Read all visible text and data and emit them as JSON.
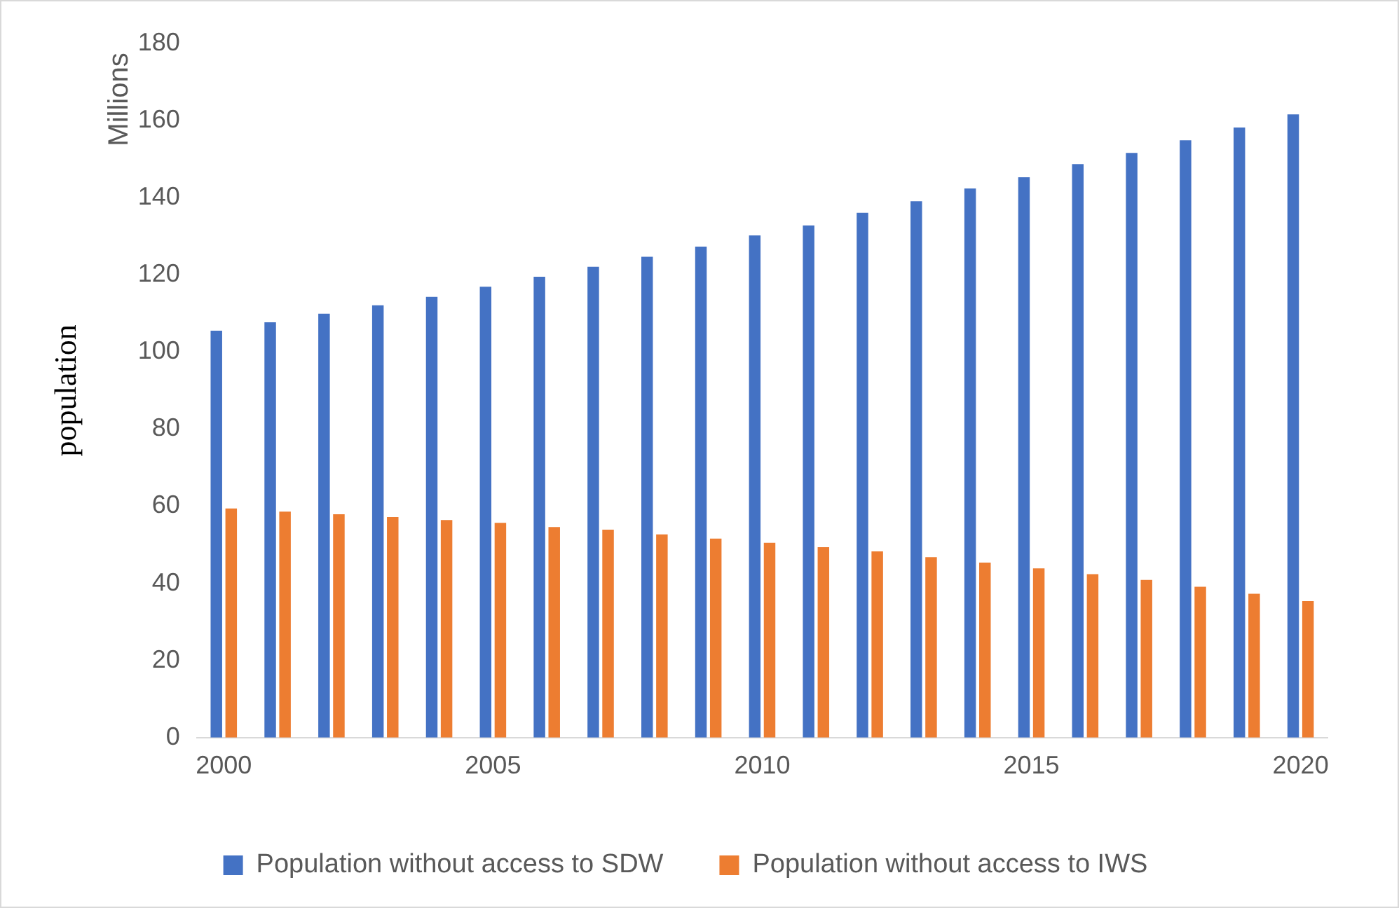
{
  "chart_data": {
    "type": "bar",
    "ylabel": "population",
    "annotations": [
      "Millions"
    ],
    "categories": [
      "2000",
      null,
      null,
      null,
      null,
      "2005",
      null,
      null,
      null,
      null,
      "2010",
      null,
      null,
      null,
      null,
      "2015",
      null,
      null,
      null,
      null,
      "2020"
    ],
    "series": [
      {
        "name": "Population without access to SDW",
        "color": "#4472c4",
        "values": [
          105.5,
          107.7,
          109.9,
          112.1,
          114.3,
          116.9,
          119.5,
          122.1,
          124.7,
          127.3,
          130.2,
          132.8,
          136.1,
          139.1,
          142.4,
          145.3,
          148.7,
          151.6,
          154.9,
          158.2,
          161.6
        ]
      },
      {
        "name": "Population without access to IWS",
        "color": "#ed7d31",
        "values": [
          59.4,
          58.6,
          57.9,
          57.2,
          56.4,
          55.7,
          54.6,
          53.9,
          52.7,
          51.6,
          50.5,
          49.4,
          48.3,
          46.8,
          45.4,
          43.9,
          42.4,
          40.9,
          39.1,
          37.3,
          35.4
        ]
      }
    ],
    "ylim": [
      0,
      180
    ],
    "yticks": [
      0,
      20,
      40,
      60,
      80,
      100,
      120,
      140,
      160,
      180
    ],
    "grid": false,
    "legend": "bottom"
  }
}
